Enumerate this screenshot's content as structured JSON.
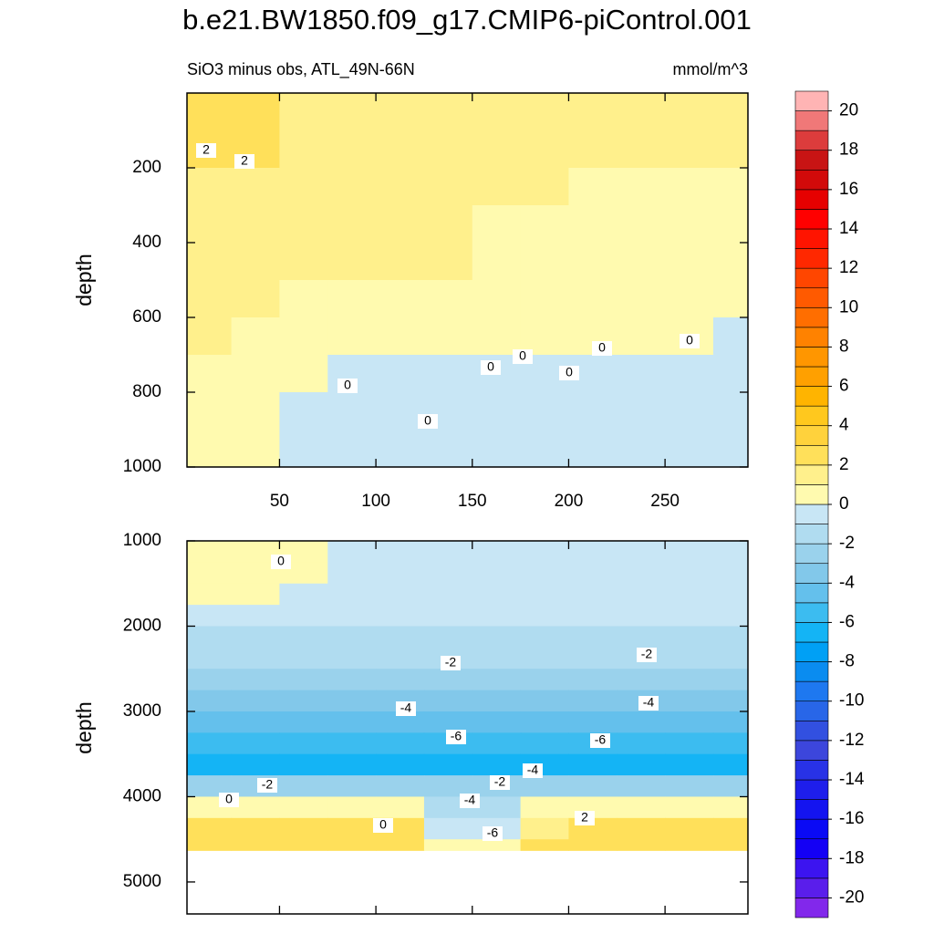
{
  "chart_data": [
    {
      "type": "contour",
      "title": "b.e21.BW1850.f09_g17.CMIP6-piControl.001",
      "subtitle": "SiO3 minus obs, ATL_49N-66N",
      "units": "mmol/m^3",
      "ylabel": "depth",
      "xlim": [
        2,
        293
      ],
      "xticks": [
        50,
        100,
        150,
        200,
        250
      ],
      "ylim": [
        0,
        1000
      ],
      "yticks": [
        200,
        400,
        600,
        800,
        1000
      ],
      "y_reversed": true,
      "field_x": [
        2,
        25,
        50,
        75,
        100,
        125,
        150,
        175,
        200,
        225,
        250,
        275,
        293
      ],
      "field_y": [
        0,
        100,
        200,
        300,
        400,
        500,
        600,
        700,
        800,
        900,
        1000
      ],
      "field": [
        [
          2.2,
          2.2,
          1.5,
          1.5,
          1.5,
          1.5,
          1.4,
          1.4,
          1.4,
          1.3,
          1.3,
          1.3
        ],
        [
          2.1,
          2.1,
          1.5,
          1.5,
          1.5,
          1.5,
          1.3,
          1.3,
          1.3,
          1.3,
          1.3,
          1.2
        ],
        [
          1.5,
          1.5,
          1.5,
          1.4,
          1.4,
          1.4,
          1.4,
          1.4,
          0.8,
          0.8,
          0.8,
          0.8
        ],
        [
          1.3,
          1.3,
          1.3,
          1.3,
          1.3,
          1.3,
          0.7,
          0.7,
          0.7,
          0.7,
          0.7,
          0.7
        ],
        [
          1.3,
          1.3,
          1.3,
          1.1,
          1.1,
          1.1,
          0.6,
          0.6,
          0.6,
          0.6,
          0.6,
          0.6
        ],
        [
          1.2,
          1.2,
          0.5,
          0.5,
          0.5,
          0.5,
          0.5,
          0.5,
          0.5,
          0.5,
          0.5,
          0.5
        ],
        [
          1.1,
          0.4,
          0.4,
          0.4,
          0.4,
          0.4,
          0.4,
          0.4,
          0.4,
          0.4,
          0.4,
          -0.3
        ],
        [
          0.3,
          0.3,
          0.3,
          -0.2,
          -0.2,
          -0.2,
          -0.2,
          -0.2,
          -0.4,
          -0.4,
          -0.4,
          -0.4
        ],
        [
          0.3,
          0.3,
          -0.2,
          -0.3,
          -0.3,
          -0.4,
          -0.4,
          -0.4,
          -0.4,
          -0.4,
          -0.4,
          -0.4
        ],
        [
          0.3,
          0.3,
          -0.2,
          -0.5,
          -0.5,
          -0.5,
          -0.5,
          -0.5,
          -0.5,
          -0.5,
          -0.5,
          -0.5
        ]
      ],
      "contour_labels": [
        2,
        2,
        0,
        0,
        0,
        0,
        0,
        0,
        0
      ]
    },
    {
      "type": "contour",
      "ylabel": "depth",
      "xlim": [
        2,
        293
      ],
      "xticks": [
        50,
        100,
        150,
        200,
        250
      ],
      "ylim": [
        1000,
        5375
      ],
      "yticks": [
        1000,
        2000,
        3000,
        4000,
        5000
      ],
      "y_reversed": true,
      "field_x": [
        2,
        25,
        50,
        75,
        100,
        125,
        150,
        175,
        200,
        225,
        250,
        275,
        293
      ],
      "field_y": [
        1000,
        1250,
        1500,
        1750,
        2000,
        2250,
        2500,
        2750,
        3000,
        3250,
        3500,
        3750,
        4000,
        4250,
        4500,
        4630
      ],
      "field": [
        [
          0.3,
          0.3,
          0.3,
          -0.5,
          -0.5,
          -0.5,
          -0.5,
          -0.5,
          -0.5,
          -0.5,
          -0.5,
          -0.5
        ],
        [
          0.2,
          0.2,
          0.2,
          -0.5,
          -0.5,
          -0.5,
          -0.5,
          -0.5,
          -0.5,
          -0.5,
          -0.5,
          -0.5
        ],
        [
          0.2,
          0.2,
          -0.6,
          -0.6,
          -0.6,
          -0.6,
          -0.6,
          -0.6,
          -0.6,
          -0.6,
          -0.6,
          -0.6
        ],
        [
          -0.8,
          -0.8,
          -0.8,
          -0.8,
          -0.8,
          -0.8,
          -0.8,
          -0.8,
          -0.8,
          -0.8,
          -0.8,
          -0.8
        ],
        [
          -1.3,
          -1.3,
          -1.3,
          -1.3,
          -1.3,
          -1.3,
          -1.3,
          -1.3,
          -1.3,
          -1.3,
          -1.3,
          -1.3
        ],
        [
          -1.8,
          -1.8,
          -1.8,
          -1.8,
          -1.8,
          -1.8,
          -1.8,
          -1.8,
          -1.8,
          -1.8,
          -1.8,
          -1.8
        ],
        [
          -2.5,
          -2.5,
          -2.5,
          -2.5,
          -2.5,
          -2.5,
          -2.5,
          -2.5,
          -2.5,
          -2.5,
          -2.5,
          -2.5
        ],
        [
          -3.3,
          -3.3,
          -3.3,
          -3.3,
          -3.3,
          -3.3,
          -3.3,
          -3.3,
          -3.3,
          -3.3,
          -3.3,
          -3.3
        ],
        [
          -4.5,
          -4.5,
          -4.5,
          -4.5,
          -4.5,
          -4.5,
          -4.5,
          -4.5,
          -4.5,
          -4.5,
          -4.5,
          -4.5
        ],
        [
          -5.6,
          -5.6,
          -5.6,
          -5.6,
          -5.6,
          -5.6,
          -5.6,
          -5.6,
          -5.6,
          -5.6,
          -5.6,
          -5.6
        ],
        [
          -6.4,
          -6.4,
          -6.4,
          -6.4,
          -6.4,
          -6.4,
          -6.4,
          -6.4,
          -6.4,
          -6.4,
          -6.4,
          -6.4
        ],
        [
          -3,
          -3,
          -3,
          -3,
          -3,
          -3,
          -3,
          -3,
          -3,
          -3,
          -3,
          -3
        ],
        [
          0.8,
          0.8,
          0.8,
          0.8,
          0.8,
          -1.5,
          -1.5,
          0.8,
          0.8,
          0.8,
          0.8,
          0.8
        ],
        [
          2.5,
          2.5,
          2.5,
          2.5,
          2.5,
          -0.8,
          -0.8,
          1.5,
          2.5,
          2.5,
          2.5,
          2.5
        ],
        [
          2.5,
          2.5,
          2.5,
          2.5,
          2.5,
          0.3,
          0.3,
          2,
          2,
          2,
          2,
          2
        ]
      ],
      "contour_labels": [
        0,
        -2,
        -2,
        -4,
        -4,
        -6,
        -6,
        0,
        -2,
        -4,
        -2,
        -4,
        -6,
        0,
        2
      ]
    }
  ],
  "colorbar": {
    "ticks": [
      20,
      18,
      16,
      14,
      12,
      10,
      8,
      6,
      4,
      2,
      0,
      -2,
      -4,
      -6,
      -8,
      -10,
      -12,
      -14,
      -16,
      -18,
      -20
    ],
    "colors": [
      "#8228eb",
      "#5a1eeb",
      "#3c14f0",
      "#1400f5",
      "#0a0af5",
      "#1414f0",
      "#1e1eeb",
      "#2832e6",
      "#3c46dc",
      "#3250e0",
      "#2866e8",
      "#1e78f0",
      "#0a8cf0",
      "#00a0f5",
      "#14b4f5",
      "#3cbcf0",
      "#64c0ec",
      "#82c8ea",
      "#9ad2ec",
      "#b0dcf0",
      "#c8e6f5",
      "#fffaaf",
      "#fff08c",
      "#ffe05a",
      "#ffd23c",
      "#ffc81e",
      "#ffb400",
      "#ffa000",
      "#ff9600",
      "#ff8200",
      "#ff6e00",
      "#ff5a00",
      "#ff4600",
      "#ff2800",
      "#ff1400",
      "#ff0000",
      "#e60000",
      "#d20a0a",
      "#c81414",
      "#dc3c3c",
      "#f07878",
      "#ffb4b4"
    ]
  }
}
